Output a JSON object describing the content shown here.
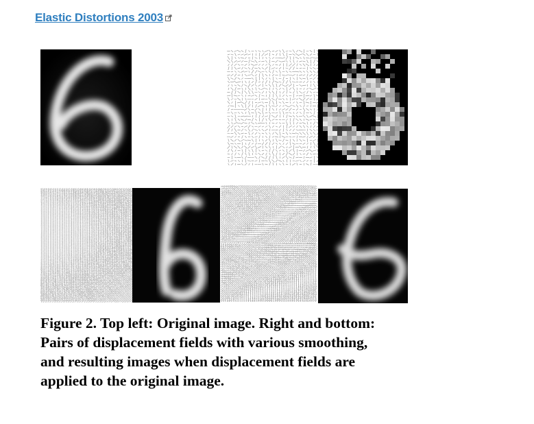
{
  "link": {
    "text": "Elastic Distortions 2003",
    "icon": "external-link-icon"
  },
  "figure": {
    "panels": [
      {
        "id": "original",
        "kind": "digit-image",
        "label": "original digit 6"
      },
      {
        "id": "field-random",
        "kind": "displacement-field",
        "smoothing": "none"
      },
      {
        "id": "result-random",
        "kind": "digit-image",
        "label": "distorted digit 6 (unsmoothed field)"
      },
      {
        "id": "field-smooth",
        "kind": "displacement-field",
        "smoothing": "high"
      },
      {
        "id": "result-smooth",
        "kind": "digit-image",
        "label": "distorted digit 6 (smooth field)"
      },
      {
        "id": "field-medium",
        "kind": "displacement-field",
        "smoothing": "medium"
      },
      {
        "id": "result-medium",
        "kind": "digit-image",
        "label": "distorted digit 6 (medium field)"
      }
    ],
    "caption": {
      "lines": [
        "Figure 2. Top left: Original image.  Right and bottom:",
        "Pairs of displacement fields with various smoothing,",
        "and resulting images when displacement fields are",
        "applied to the original image."
      ]
    }
  }
}
